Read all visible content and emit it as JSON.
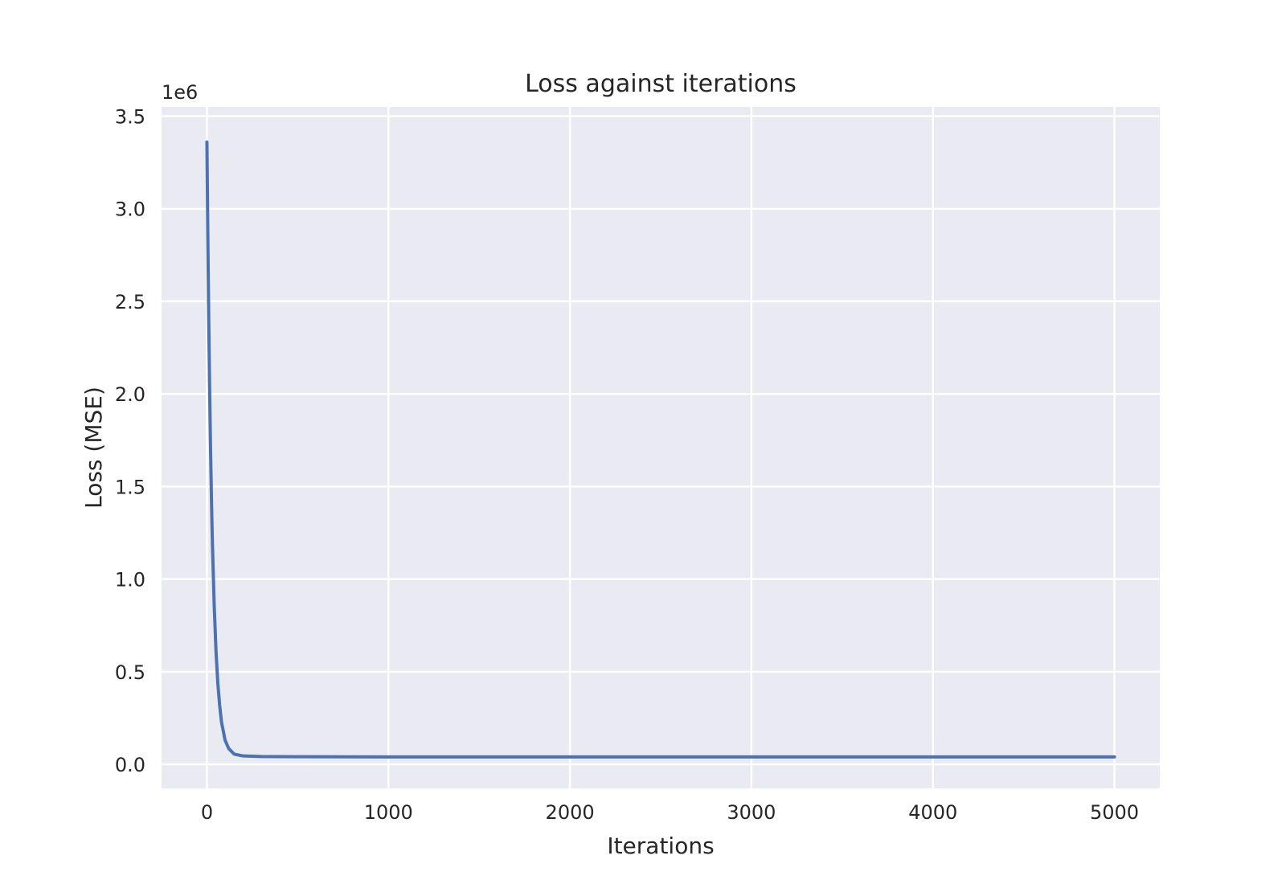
{
  "chart_data": {
    "type": "line",
    "title": "Loss against iterations",
    "xlabel": "Iterations",
    "ylabel": "Loss (MSE)",
    "y_offset_label": "1e6",
    "xlim": [
      -250,
      5250
    ],
    "ylim": [
      -0.13,
      3.55
    ],
    "x_ticks": [
      0,
      1000,
      2000,
      3000,
      4000,
      5000
    ],
    "x_tick_labels": [
      "0",
      "1000",
      "2000",
      "3000",
      "4000",
      "5000"
    ],
    "y_ticks": [
      0.0,
      0.5,
      1.0,
      1.5,
      2.0,
      2.5,
      3.0,
      3.5
    ],
    "y_tick_labels": [
      "0.0",
      "0.5",
      "1.0",
      "1.5",
      "2.0",
      "2.5",
      "3.0",
      "3.5"
    ],
    "grid": true,
    "background_color": "#eaeaf2",
    "series": [
      {
        "color": "#4c72b0",
        "x": [
          0,
          5,
          10,
          15,
          20,
          25,
          30,
          40,
          50,
          60,
          70,
          80,
          100,
          120,
          150,
          200,
          300,
          500,
          1000,
          2000,
          3000,
          4000,
          5000
        ],
        "y": [
          3.36,
          2.85,
          2.4,
          2.02,
          1.7,
          1.43,
          1.2,
          0.86,
          0.61,
          0.44,
          0.32,
          0.23,
          0.13,
          0.085,
          0.055,
          0.045,
          0.042,
          0.041,
          0.04,
          0.04,
          0.04,
          0.04,
          0.04
        ]
      }
    ]
  }
}
